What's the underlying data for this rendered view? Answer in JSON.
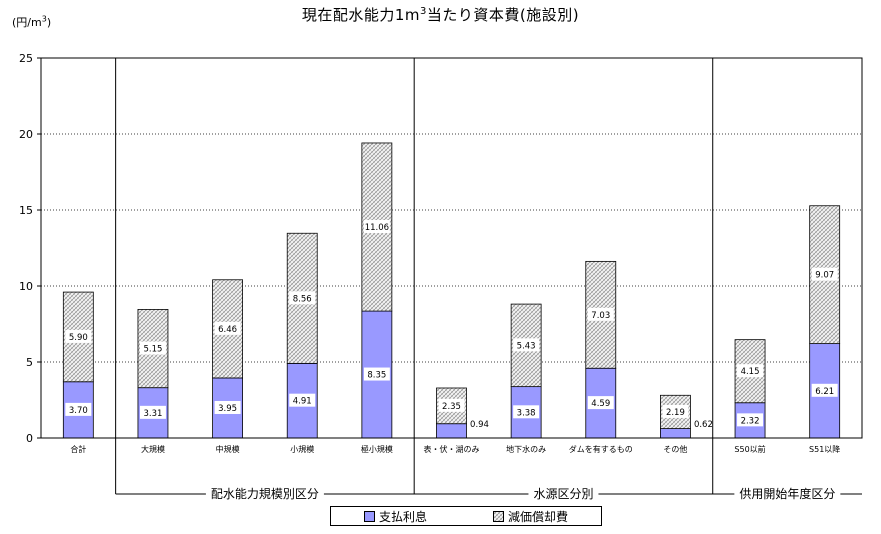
{
  "chart_data": {
    "type": "bar",
    "stacked": true,
    "title_main": "現在配水能力1m",
    "title_sup": "3",
    "title_rest": "当たり資本費(施設別)",
    "unit_main": "(円/m",
    "unit_sup": "3",
    "unit_end": ")",
    "ylim": [
      0,
      25
    ],
    "yticks": [
      "0",
      "5",
      "10",
      "15",
      "20",
      "25"
    ],
    "grid": true,
    "categories": [
      "合計",
      "大規模",
      "中規模",
      "小規模",
      "極小規模",
      "表・伏・湖のみ",
      "地下水のみ",
      "ダムを有するもの",
      "その他",
      "S50以前",
      "S51以降"
    ],
    "series": [
      {
        "name": "支払利息",
        "values": [
          3.7,
          3.31,
          3.95,
          4.91,
          8.35,
          0.94,
          3.38,
          4.59,
          0.62,
          2.32,
          6.21
        ],
        "labels": [
          "3.70",
          "3.31",
          "3.95",
          "4.91",
          "8.35",
          "0.94",
          "3.38",
          "4.59",
          "0.62",
          "2.32",
          "6.21"
        ],
        "color": "#9999ff"
      },
      {
        "name": "減価償却費",
        "values": [
          5.9,
          5.15,
          6.46,
          8.56,
          11.06,
          2.35,
          5.43,
          7.03,
          2.19,
          4.15,
          9.07
        ],
        "labels": [
          "5.90",
          "5.15",
          "6.46",
          "8.56",
          "11.06",
          "2.35",
          "5.43",
          "7.03",
          "2.19",
          "4.15",
          "9.07"
        ],
        "color": "#dddddd"
      }
    ],
    "groups": [
      {
        "label": "配水能力規模別区分",
        "start": 1,
        "end": 4
      },
      {
        "label": "水源区分別",
        "start": 5,
        "end": 8
      },
      {
        "label": "供用開始年度区分",
        "start": 9,
        "end": 10
      }
    ],
    "legend_position": "bottom"
  }
}
